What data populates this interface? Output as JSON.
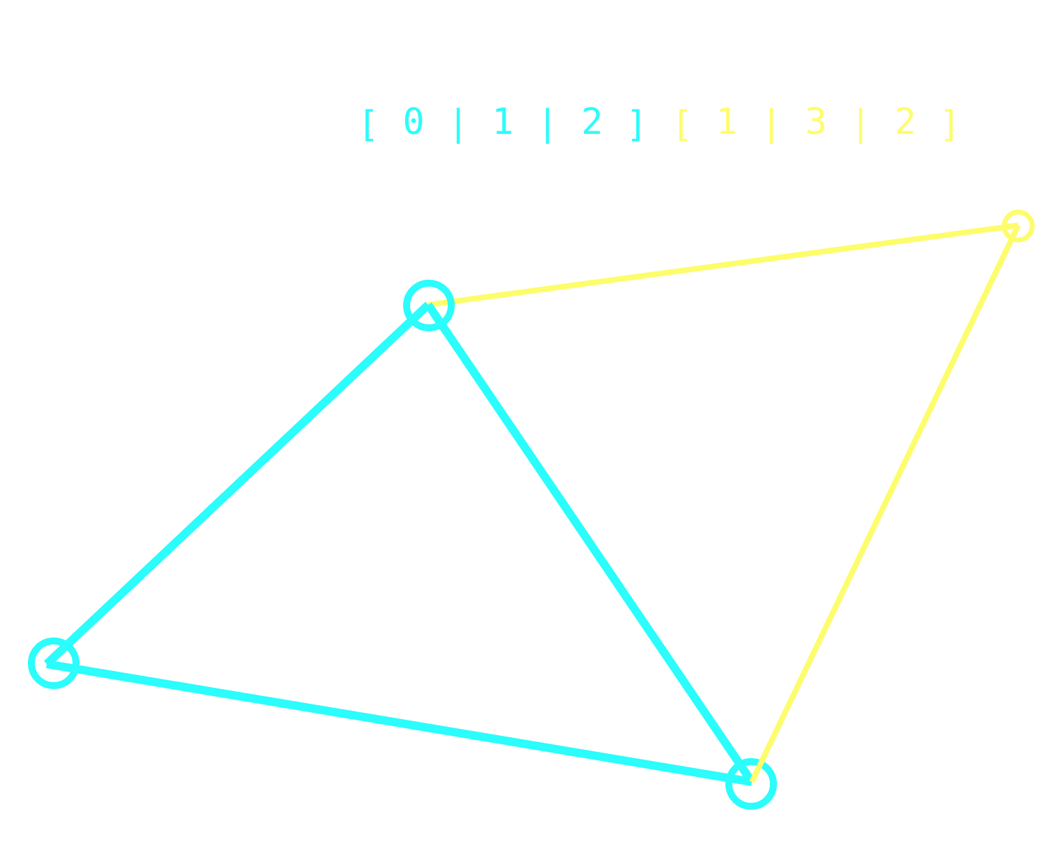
{
  "colors": {
    "triangle_a": "#2bfcfc",
    "triangle_b": "#fdfd6c",
    "background": "#ffffff"
  },
  "index_buffer": {
    "triangle_a": {
      "tokens": [
        "[",
        "0",
        "|",
        "1",
        "|",
        "2",
        "]"
      ]
    },
    "triangle_b": {
      "tokens": [
        "[",
        "1",
        "|",
        "3",
        "|",
        "2",
        "]"
      ]
    }
  },
  "triangles": [
    {
      "id": "triangle_a",
      "vertices": [
        0,
        1,
        2
      ]
    },
    {
      "id": "triangle_b",
      "vertices": [
        1,
        3,
        2
      ]
    }
  ]
}
